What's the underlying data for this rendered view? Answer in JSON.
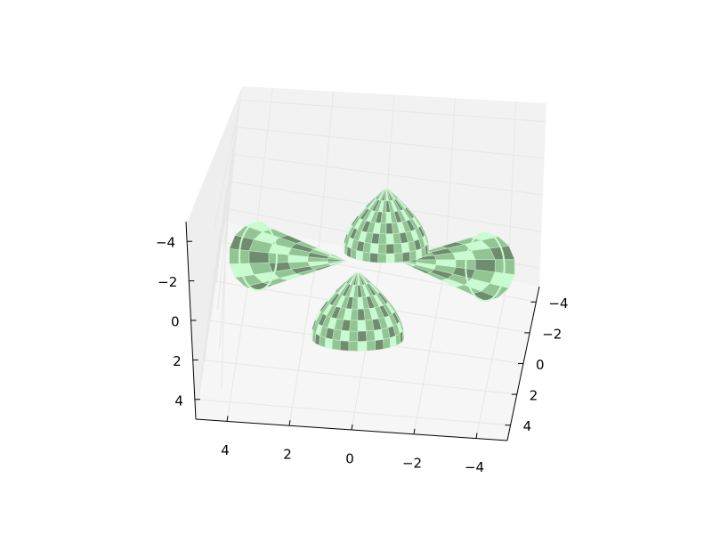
{
  "chart_data": {
    "type": "surface3d",
    "title": "",
    "xlabel": "",
    "ylabel": "",
    "zlabel": "",
    "grid": true,
    "colors": {
      "surface_light": "#c8fbd0",
      "surface_mid": "#93c493",
      "surface_dark": "#6f8c6f",
      "pane_back": "#f2f2f2",
      "pane_side": "#ebebeb",
      "pane_floor": "#f6f6f6",
      "grid": "#e6e6e6"
    },
    "axes": {
      "x": {
        "range": [
          -5,
          5
        ],
        "ticks": [
          4,
          2,
          0,
          -2,
          -4
        ],
        "tick_labels": [
          "4",
          "2",
          "0",
          "−2",
          "−4"
        ]
      },
      "y": {
        "range": [
          -5,
          5
        ],
        "ticks": [
          4,
          2,
          0,
          -2,
          -4
        ],
        "tick_labels": [
          "4",
          "2",
          "0",
          "−2",
          "−4"
        ]
      },
      "z": {
        "range": [
          -5,
          5
        ],
        "ticks": [
          -4,
          -2,
          0,
          2,
          4
        ],
        "tick_labels": [
          "−4",
          "−2",
          "0",
          "2",
          "4"
        ]
      }
    },
    "surfaces": [
      {
        "name": "",
        "shape": "cone-lobe",
        "orientation": "left"
      },
      {
        "name": "",
        "shape": "cone-lobe",
        "orientation": "right"
      },
      {
        "name": "",
        "shape": "cone-lobe",
        "orientation": "back"
      },
      {
        "name": "",
        "shape": "cone-lobe",
        "orientation": "front"
      }
    ]
  }
}
